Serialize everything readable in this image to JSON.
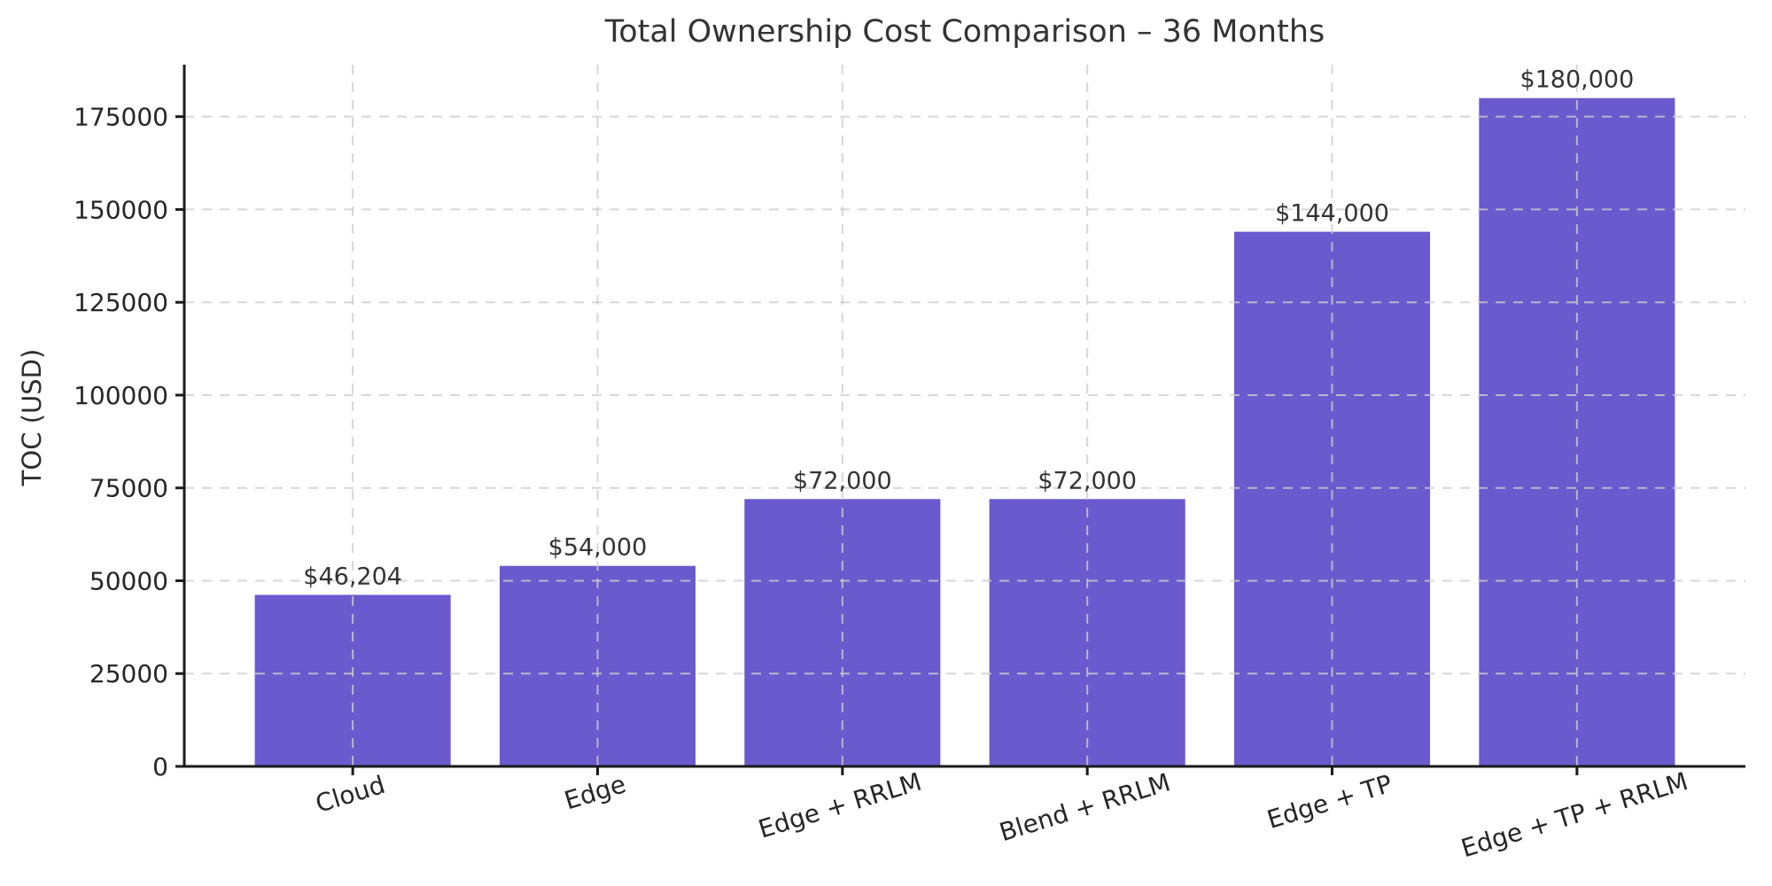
{
  "figure": {
    "background_color": "#ffffff"
  },
  "chart_data": {
    "type": "bar",
    "title": "Total Ownership Cost Comparison – 36 Months",
    "xlabel": "",
    "ylabel": "TOC (USD)",
    "categories": [
      "Cloud",
      "Edge",
      "Edge + RRLM",
      "Blend + RRLM",
      "Edge + TP",
      "Edge + TP + RRLM"
    ],
    "values": [
      46204,
      54000,
      72000,
      72000,
      144000,
      180000
    ],
    "bar_labels": [
      "$46,204",
      "$54,000",
      "$72,000",
      "$72,000",
      "$144,000",
      "$180,000"
    ],
    "yticks": [
      0,
      25000,
      50000,
      75000,
      100000,
      125000,
      150000,
      175000
    ],
    "ylim": [
      0,
      189000
    ],
    "legend": "none",
    "grid": "dashed, horizontal and vertical, drawn above bars",
    "x_tick_label_rotation_deg": 17,
    "colors": {
      "bar": "#6A5ACD",
      "grid": "#cdcdcd",
      "axis": "#1a1a1a",
      "tick_label": "#262626",
      "value_label": "#333333",
      "title": "#333333"
    }
  }
}
